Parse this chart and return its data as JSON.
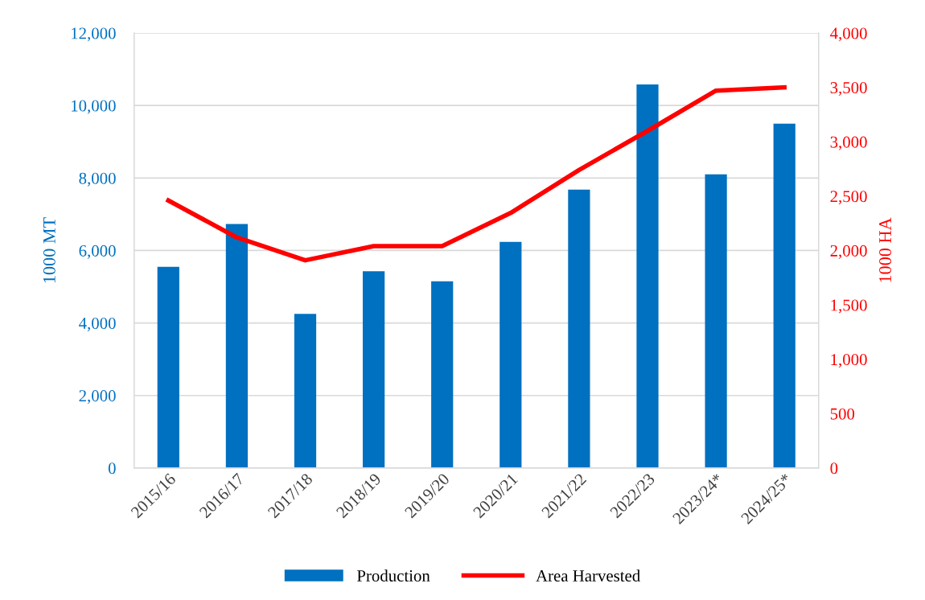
{
  "chart_data": {
    "type": "bar",
    "categories": [
      "2015/16",
      "2016/17",
      "2017/18",
      "2018/19",
      "2019/20",
      "2020/21",
      "2021/22",
      "2022/23",
      "2023/24*",
      "2024/25*"
    ],
    "ylabel": "1000 MT",
    "y2label": "1000 HA",
    "series": [
      {
        "name": "Production",
        "color": "#0070c0",
        "values": [
          5550,
          6730,
          4250,
          5430,
          5150,
          6240,
          7680,
          10580,
          8100,
          9500
        ]
      },
      {
        "name": "Area Harvested",
        "type": "line",
        "axis": "y2",
        "color": "#ff0000",
        "marker": "none",
        "line_style": "solid",
        "values": [
          2460,
          2120,
          1910,
          2040,
          2040,
          2345,
          2740,
          3100,
          3470,
          3500
        ]
      }
    ],
    "ylim": [
      0,
      12000
    ],
    "yticks": [
      0,
      {
        "value": 2000,
        "label": "2,000"
      },
      {
        "value": 4000,
        "label": "4,000"
      },
      {
        "value": 6000,
        "label": "6,000"
      },
      {
        "value": 8000,
        "label": "8,000"
      },
      {
        "value": 10000,
        "label": "10,000"
      },
      {
        "value": 12000,
        "label": "12,000"
      }
    ],
    "y2lim": [
      0,
      4000
    ],
    "y2ticks": [
      0,
      500,
      {
        "value": 1000,
        "label": "1,000"
      },
      {
        "value": 1500,
        "label": "1,500"
      },
      {
        "value": 2000,
        "label": "2,000"
      },
      {
        "value": 2500,
        "label": "2,500"
      },
      {
        "value": 3000,
        "label": "3,000"
      },
      {
        "value": 3500,
        "label": "3,500"
      },
      {
        "value": 4000,
        "label": "4,000"
      }
    ],
    "grid": "y",
    "legend": "bottom"
  }
}
